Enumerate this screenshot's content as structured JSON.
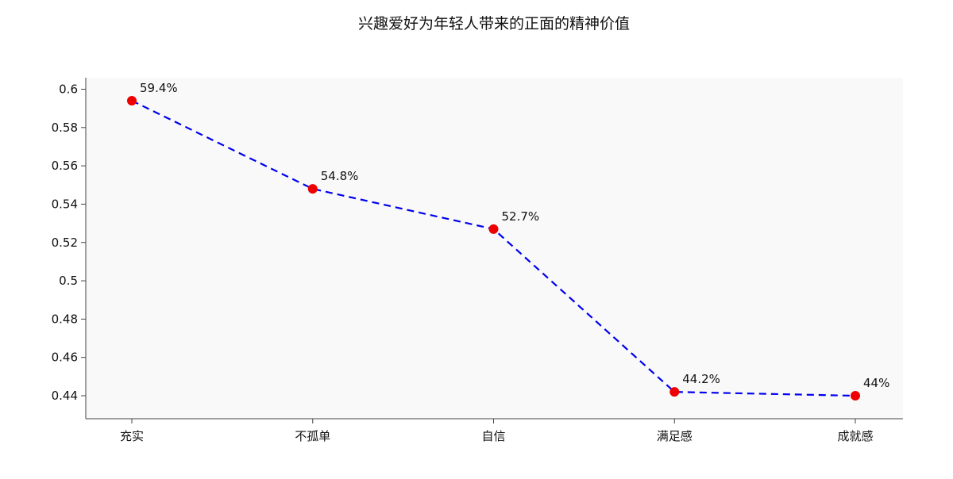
{
  "chart_data": {
    "type": "line",
    "title": "兴趣爱好为年轻人带来的正面的精神价值",
    "xlabel": "",
    "ylabel": "",
    "categories": [
      "充实",
      "不孤单",
      "自信",
      "满足感",
      "成就感"
    ],
    "values": [
      0.594,
      0.548,
      0.527,
      0.442,
      0.44
    ],
    "data_labels": [
      "59.4%",
      "54.8%",
      "52.7%",
      "44.2%",
      "44%"
    ],
    "ylim": [
      0.428,
      0.606
    ],
    "yticks": [
      0.44,
      0.46,
      0.48,
      0.5,
      0.52,
      0.54,
      0.56,
      0.58,
      0.6
    ],
    "ytick_labels": [
      "0.44",
      "0.46",
      "0.48",
      "0.5",
      "0.52",
      "0.54",
      "0.56",
      "0.58",
      "0.6"
    ],
    "grid": false,
    "legend": "none",
    "colors": {
      "line": "#0000ee",
      "marker": "#ee0000",
      "plot_background": "#f9f9f9",
      "axis": "#444444"
    }
  }
}
